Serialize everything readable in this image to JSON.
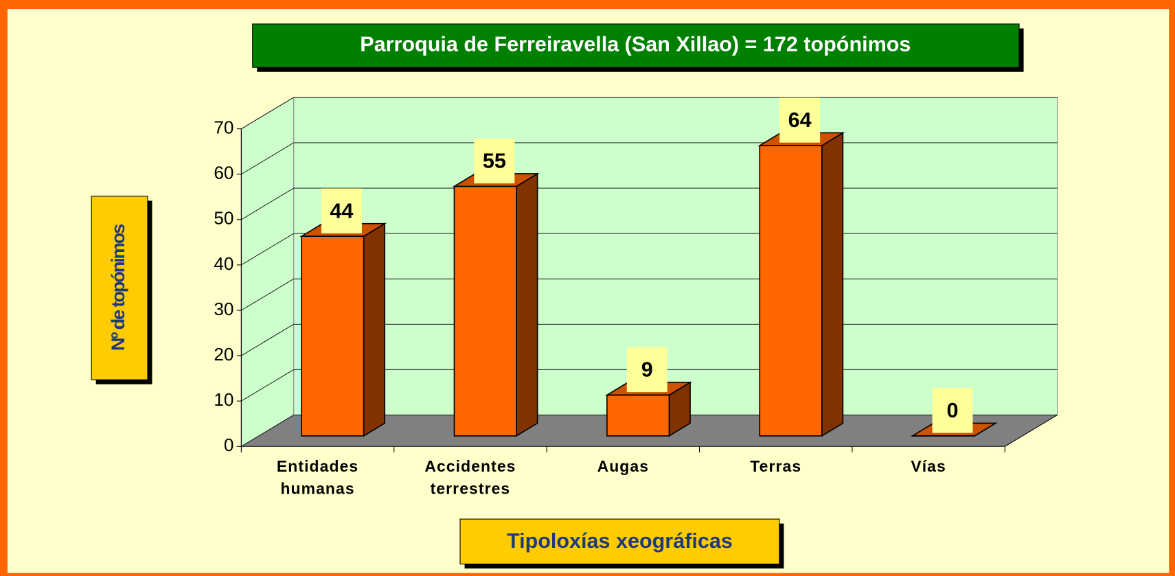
{
  "chart_data": {
    "type": "bar3d",
    "title": "Parroquia de Ferreiravella (San Xillao) = 172 topónimos",
    "y_label": "Nº de topónimos",
    "x_label": "Tipoloxías xeográficas",
    "categories": [
      "Entidades humanas",
      "Accidentes terrestres",
      "Augas",
      "Terras",
      "Vías"
    ],
    "values": [
      44,
      55,
      9,
      64,
      0
    ],
    "color": "#ff6600",
    "ylim": [
      0,
      70
    ],
    "yticks": [
      0,
      10,
      20,
      30,
      40,
      50,
      60,
      70
    ],
    "grid": true
  }
}
